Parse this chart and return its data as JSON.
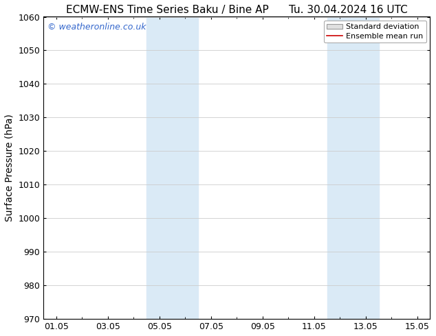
{
  "title_left": "ECMW-ENS Time Series Baku / Bine AP",
  "title_right": "Tu. 30.04.2024 16 UTC",
  "ylabel": "Surface Pressure (hPa)",
  "ylim": [
    970,
    1060
  ],
  "yticks": [
    970,
    980,
    990,
    1000,
    1010,
    1020,
    1030,
    1040,
    1050,
    1060
  ],
  "xtick_labels": [
    "01.05",
    "03.05",
    "05.05",
    "07.05",
    "09.05",
    "11.05",
    "13.05",
    "15.05"
  ],
  "xtick_positions": [
    0,
    2,
    4,
    6,
    8,
    10,
    12,
    14
  ],
  "xlim": [
    -0.5,
    14.5
  ],
  "shaded_bands": [
    {
      "x_start": 3.5,
      "x_end": 5.5,
      "color": "#daeaf6"
    },
    {
      "x_start": 10.5,
      "x_end": 12.5,
      "color": "#daeaf6"
    }
  ],
  "watermark_text": "© weatheronline.co.uk",
  "watermark_color": "#3366cc",
  "legend_std_label": "Standard deviation",
  "legend_mean_label": "Ensemble mean run",
  "legend_std_facecolor": "#e0e0e0",
  "legend_std_edgecolor": "#999999",
  "legend_mean_color": "#cc0000",
  "background_color": "#ffffff",
  "grid_color": "#cccccc",
  "title_fontsize": 11,
  "axis_label_fontsize": 10,
  "tick_fontsize": 9,
  "watermark_fontsize": 9,
  "legend_fontsize": 8
}
